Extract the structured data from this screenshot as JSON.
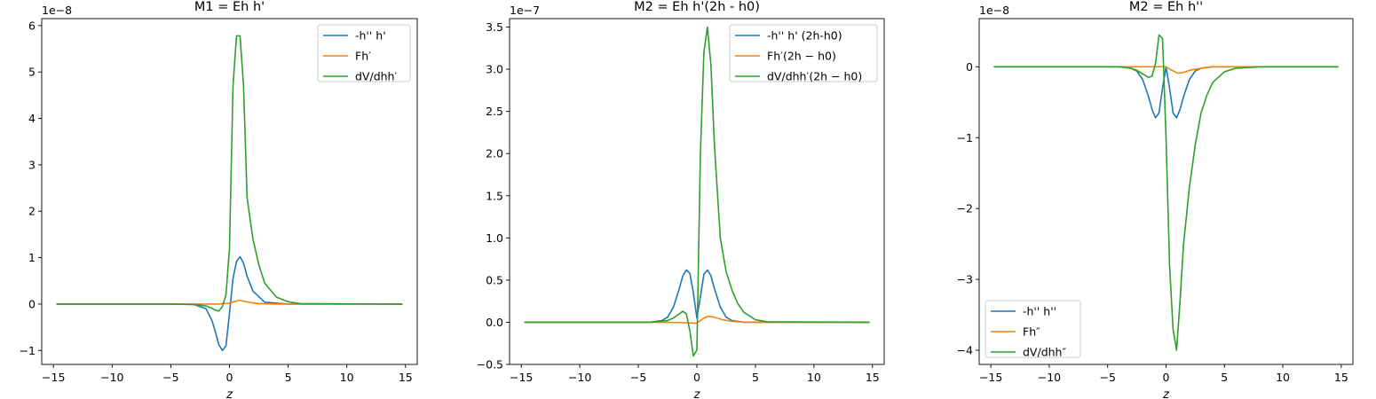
{
  "chart_data": [
    {
      "type": "line",
      "title": "M1 = Eh h'",
      "xlabel": "z",
      "offset_text": "1e−8",
      "xlim": [
        -16.0,
        16.0
      ],
      "ylim": [
        -1.3,
        6.15
      ],
      "xticks": [
        -15,
        -10,
        -5,
        0,
        5,
        10,
        15
      ],
      "xtick_labels": [
        "−15",
        "−10",
        "−5",
        "0",
        "5",
        "10",
        "15"
      ],
      "yticks": [
        -1,
        0,
        1,
        2,
        3,
        4,
        5,
        6
      ],
      "ytick_labels": [
        "−1",
        "0",
        "1",
        "2",
        "3",
        "4",
        "5",
        "6"
      ],
      "legend_position": "upper right",
      "series": [
        {
          "name": "-h'' h'",
          "color": "#1f77b4",
          "x": [
            -14.7,
            -5,
            -3,
            -2,
            -1.5,
            -1.2,
            -0.9,
            -0.6,
            -0.3,
            0,
            0.3,
            0.6,
            0.9,
            1.2,
            1.5,
            2,
            3,
            5,
            14.7
          ],
          "y": [
            0,
            0,
            -0.01,
            -0.1,
            -0.35,
            -0.6,
            -0.88,
            -1.0,
            -0.9,
            -0.2,
            0.55,
            0.92,
            1.02,
            0.88,
            0.6,
            0.28,
            0.04,
            0,
            0
          ]
        },
        {
          "name": "Fh′",
          "color": "#ff7f0e",
          "x": [
            -14.7,
            -3,
            -1,
            0,
            0.5,
            0.8,
            1.1,
            1.6,
            2.5,
            4,
            14.7
          ],
          "y": [
            0,
            0,
            0,
            0.02,
            0.06,
            0.08,
            0.07,
            0.04,
            0.01,
            0,
            0
          ]
        },
        {
          "name": "dV/dhh′",
          "color": "#2ca02c",
          "x": [
            -14.7,
            -5,
            -3,
            -2,
            -1.5,
            -1.2,
            -0.9,
            -0.6,
            -0.3,
            0,
            0.3,
            0.6,
            0.9,
            1.2,
            1.5,
            2,
            2.5,
            3,
            4,
            5,
            6,
            14.7
          ],
          "y": [
            0,
            0,
            -0.01,
            -0.04,
            -0.09,
            -0.13,
            -0.15,
            -0.05,
            0.2,
            1.2,
            4.7,
            5.78,
            5.78,
            4.7,
            2.3,
            1.4,
            0.85,
            0.45,
            0.15,
            0.05,
            0.01,
            0
          ]
        }
      ]
    },
    {
      "type": "line",
      "title": "M2 = Eh h'(2h - h0)",
      "xlabel": "z",
      "offset_text": "1e−7",
      "xlim": [
        -16.0,
        16.0
      ],
      "ylim": [
        -0.5,
        3.6
      ],
      "xticks": [
        -15,
        -10,
        -5,
        0,
        5,
        10,
        15
      ],
      "xtick_labels": [
        "−15",
        "−10",
        "−5",
        "0",
        "5",
        "10",
        "15"
      ],
      "yticks": [
        -0.5,
        0.0,
        0.5,
        1.0,
        1.5,
        2.0,
        2.5,
        3.0,
        3.5
      ],
      "ytick_labels": [
        "−0.5",
        "0.0",
        "0.5",
        "1.0",
        "1.5",
        "2.0",
        "2.5",
        "3.0",
        "3.5"
      ],
      "legend_position": "upper right",
      "series": [
        {
          "name": "-h'' h' (2h-h0)",
          "color": "#1f77b4",
          "x": [
            -14.7,
            -4,
            -3,
            -2.5,
            -2,
            -1.5,
            -1.2,
            -0.9,
            -0.6,
            -0.3,
            0,
            0.3,
            0.6,
            0.9,
            1.2,
            1.5,
            2,
            2.5,
            3,
            4,
            14.7
          ],
          "y": [
            0,
            0,
            0.02,
            0.06,
            0.18,
            0.4,
            0.55,
            0.62,
            0.58,
            0.35,
            0.05,
            0.3,
            0.57,
            0.62,
            0.55,
            0.4,
            0.18,
            0.06,
            0.02,
            0,
            0
          ]
        },
        {
          "name": "Fh′(2h − h0)",
          "color": "#ff7f0e",
          "x": [
            -14.7,
            -3,
            -1,
            -0.3,
            0,
            0.3,
            0.6,
            1.0,
            1.5,
            2.2,
            3,
            4,
            14.7
          ],
          "y": [
            0,
            0,
            -0.005,
            -0.01,
            -0.01,
            0.02,
            0.05,
            0.07,
            0.06,
            0.03,
            0.01,
            0,
            0
          ]
        },
        {
          "name": "dV/dhh′(2h − h0)",
          "color": "#2ca02c",
          "x": [
            -14.7,
            -4,
            -2.5,
            -2,
            -1.5,
            -1.2,
            -0.9,
            -0.6,
            -0.3,
            0,
            0.3,
            0.6,
            0.9,
            1.2,
            1.5,
            2,
            2.5,
            3,
            3.5,
            4,
            5,
            6,
            14.7
          ],
          "y": [
            0,
            0,
            0.02,
            0.05,
            0.1,
            0.13,
            0.1,
            -0.1,
            -0.4,
            -0.33,
            2.0,
            3.2,
            3.5,
            3.05,
            2.1,
            1.0,
            0.6,
            0.38,
            0.22,
            0.12,
            0.03,
            0.005,
            0
          ]
        }
      ]
    },
    {
      "type": "line",
      "title": "M2 = Eh h''",
      "xlabel": "z",
      "offset_text": "1e−8",
      "xlim": [
        -16.0,
        16.0
      ],
      "ylim": [
        -4.2,
        0.68
      ],
      "xticks": [
        -15,
        -10,
        -5,
        0,
        5,
        10,
        15
      ],
      "xtick_labels": [
        "−15",
        "−10",
        "−5",
        "0",
        "5",
        "10",
        "15"
      ],
      "yticks": [
        -4,
        -3,
        -2,
        -1,
        0
      ],
      "ytick_labels": [
        "−4",
        "−3",
        "−2",
        "−1",
        "0"
      ],
      "legend_position": "lower left",
      "series": [
        {
          "name": "-h'' h''",
          "color": "#1f77b4",
          "x": [
            -14.7,
            -4,
            -3,
            -2.5,
            -2,
            -1.5,
            -1.2,
            -0.9,
            -0.6,
            -0.3,
            0,
            0.3,
            0.6,
            0.9,
            1.2,
            1.5,
            2,
            2.5,
            3,
            4,
            14.7
          ],
          "y": [
            0,
            0,
            -0.02,
            -0.06,
            -0.18,
            -0.42,
            -0.6,
            -0.72,
            -0.65,
            -0.3,
            0.0,
            -0.3,
            -0.65,
            -0.72,
            -0.6,
            -0.42,
            -0.18,
            -0.06,
            -0.02,
            0,
            0
          ]
        },
        {
          "name": "Fh″",
          "color": "#ff7f0e",
          "x": [
            -14.7,
            -2,
            -1,
            0,
            0.5,
            1,
            1.5,
            2,
            3,
            4,
            14.7
          ],
          "y": [
            0,
            0,
            0,
            0.0,
            -0.05,
            -0.09,
            -0.08,
            -0.05,
            -0.02,
            0,
            0
          ]
        },
        {
          "name": "dV/dhh″",
          "color": "#2ca02c",
          "x": [
            -14.7,
            -4,
            -3,
            -2.5,
            -2,
            -1.5,
            -1.2,
            -0.9,
            -0.6,
            -0.3,
            0,
            0.3,
            0.6,
            0.9,
            1.2,
            1.5,
            2,
            2.5,
            3,
            3.5,
            4,
            5,
            6,
            8,
            14.7
          ],
          "y": [
            0,
            0,
            -0.02,
            -0.05,
            -0.1,
            -0.15,
            -0.13,
            0.05,
            0.45,
            0.4,
            -1.0,
            -2.8,
            -3.7,
            -4.0,
            -3.3,
            -2.5,
            -1.7,
            -1.1,
            -0.65,
            -0.4,
            -0.22,
            -0.07,
            -0.02,
            0,
            0
          ]
        }
      ]
    }
  ]
}
